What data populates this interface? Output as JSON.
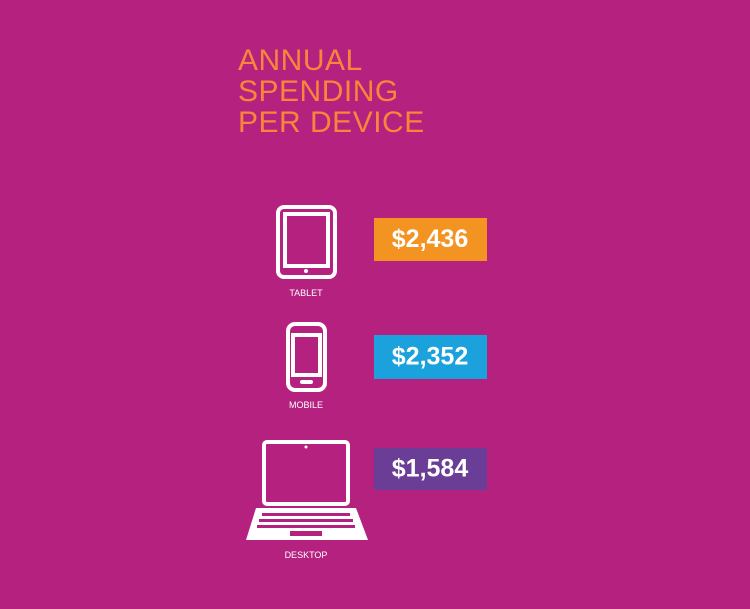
{
  "title": {
    "lines": [
      "ANNUAL",
      "SPENDING",
      "PER DEVICE"
    ]
  },
  "devices": [
    {
      "label": "TABLET",
      "amount": "$2,436",
      "color": "#f39322"
    },
    {
      "label": "MOBILE",
      "amount": "$2,352",
      "color": "#1ba1dc"
    },
    {
      "label": "DESKTOP",
      "amount": "$1,584",
      "color": "#6a3d96"
    }
  ]
}
